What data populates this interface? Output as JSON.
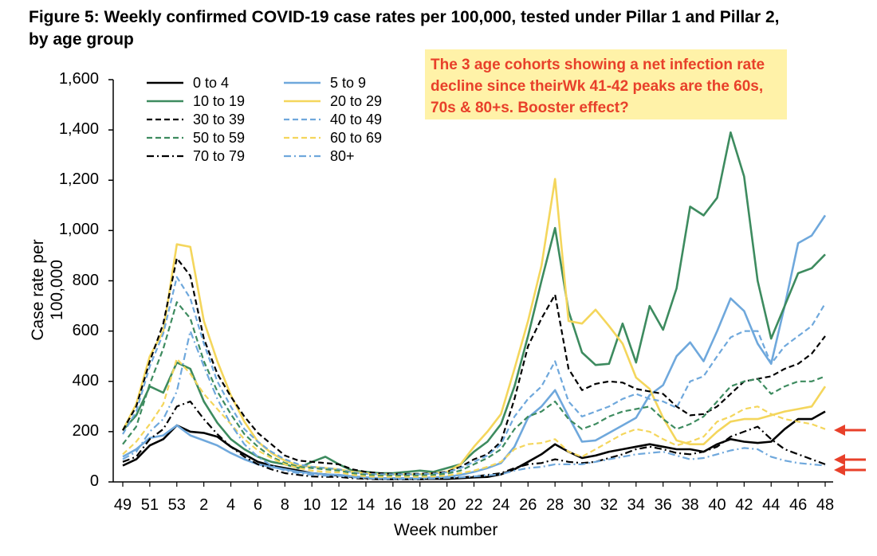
{
  "title": "Figure 5: Weekly confirmed COVID-19 case rates per 100,000, tested under Pillar 1 and Pillar 2, by age group",
  "callout": "The 3 age cohorts showing a net infection rate decline since theirWk 41-42 peaks are the 60s, 70s & 80+s. Booster effect?",
  "chart_data": {
    "type": "line",
    "title": "Figure 5: Weekly confirmed COVID-19 case rates per 100,000, tested under Pillar 1 and Pillar 2, by age group",
    "xlabel": "Week number",
    "ylabel": "Case rate per 100,000",
    "ylim": [
      0,
      1600
    ],
    "yticks": [
      "0",
      "200",
      "400",
      "600",
      "800",
      "1,000",
      "1,200",
      "1,400",
      "1,600"
    ],
    "xtick_labels": [
      "49",
      "51",
      "53",
      "2",
      "4",
      "6",
      "8",
      "10",
      "12",
      "14",
      "16",
      "18",
      "20",
      "22",
      "24",
      "26",
      "28",
      "30",
      "32",
      "34",
      "36",
      "38",
      "40",
      "42",
      "44",
      "46",
      "48"
    ],
    "x": [
      "49",
      "50",
      "51",
      "52",
      "53",
      "1",
      "2",
      "3",
      "4",
      "5",
      "6",
      "7",
      "8",
      "9",
      "10",
      "11",
      "12",
      "13",
      "14",
      "15",
      "16",
      "17",
      "18",
      "19",
      "20",
      "21",
      "22",
      "23",
      "24",
      "25",
      "26",
      "27",
      "28",
      "29",
      "30",
      "31",
      "32",
      "33",
      "34",
      "35",
      "36",
      "37",
      "38",
      "39",
      "40",
      "41",
      "42",
      "43",
      "44",
      "45",
      "46",
      "47",
      "48"
    ],
    "legend_position": "top-left",
    "grid": false,
    "series": [
      {
        "name": "0 to 4",
        "color": "#000000",
        "dash": "solid",
        "values": [
          65,
          90,
          145,
          170,
          225,
          200,
          195,
          180,
          140,
          110,
          80,
          65,
          55,
          45,
          35,
          30,
          25,
          20,
          15,
          12,
          12,
          12,
          12,
          12,
          12,
          15,
          18,
          20,
          30,
          50,
          80,
          110,
          150,
          120,
          95,
          105,
          120,
          130,
          140,
          150,
          140,
          130,
          130,
          120,
          150,
          170,
          160,
          155,
          160,
          210,
          250,
          250,
          280
        ]
      },
      {
        "name": "5 to 9",
        "color": "#6fa8dc",
        "dash": "solid",
        "values": [
          100,
          130,
          175,
          185,
          225,
          185,
          165,
          145,
          115,
          90,
          70,
          60,
          50,
          40,
          35,
          30,
          28,
          22,
          18,
          15,
          15,
          15,
          15,
          18,
          20,
          28,
          40,
          55,
          75,
          140,
          255,
          300,
          365,
          260,
          160,
          165,
          195,
          225,
          255,
          345,
          385,
          500,
          555,
          480,
          600,
          730,
          680,
          550,
          470,
          700,
          950,
          980,
          1060
        ]
      },
      {
        "name": "10 to 19",
        "color": "#3d8b5f",
        "dash": "solid",
        "values": [
          205,
          265,
          380,
          355,
          475,
          450,
          320,
          235,
          170,
          130,
          100,
          80,
          70,
          55,
          80,
          100,
          70,
          45,
          40,
          35,
          35,
          40,
          45,
          40,
          55,
          70,
          120,
          160,
          230,
          380,
          580,
          800,
          1010,
          680,
          515,
          465,
          470,
          630,
          475,
          700,
          605,
          770,
          1095,
          1060,
          1130,
          1390,
          1215,
          800,
          570,
          700,
          830,
          850,
          905
        ]
      },
      {
        "name": "20 to 29",
        "color": "#f4d65c",
        "dash": "solid",
        "values": [
          205,
          310,
          500,
          600,
          945,
          935,
          640,
          480,
          345,
          240,
          160,
          115,
          85,
          65,
          60,
          55,
          50,
          40,
          35,
          30,
          30,
          30,
          30,
          35,
          40,
          70,
          140,
          200,
          270,
          450,
          640,
          860,
          1205,
          640,
          630,
          685,
          620,
          550,
          415,
          370,
          255,
          165,
          150,
          150,
          200,
          240,
          250,
          250,
          265,
          280,
          290,
          300,
          380
        ]
      },
      {
        "name": "30 to 39",
        "color": "#000000",
        "dash": "dashed",
        "values": [
          205,
          300,
          480,
          630,
          890,
          820,
          570,
          430,
          340,
          260,
          195,
          150,
          105,
          85,
          80,
          75,
          70,
          50,
          40,
          35,
          32,
          32,
          32,
          35,
          40,
          60,
          90,
          110,
          160,
          330,
          540,
          650,
          745,
          450,
          365,
          390,
          400,
          395,
          370,
          360,
          350,
          300,
          265,
          270,
          300,
          350,
          400,
          410,
          420,
          450,
          470,
          510,
          580
        ]
      },
      {
        "name": "40 to 49",
        "color": "#6fa8dc",
        "dash": "dashed",
        "values": [
          190,
          280,
          460,
          590,
          815,
          730,
          550,
          400,
          300,
          210,
          160,
          120,
          90,
          70,
          60,
          55,
          50,
          38,
          32,
          30,
          30,
          30,
          30,
          33,
          38,
          55,
          80,
          105,
          150,
          260,
          330,
          380,
          480,
          320,
          260,
          280,
          300,
          330,
          350,
          330,
          320,
          295,
          400,
          420,
          500,
          575,
          600,
          600,
          470,
          540,
          580,
          620,
          710
        ]
      },
      {
        "name": "50 to 59",
        "color": "#3d8b5f",
        "dash": "dashed",
        "values": [
          150,
          220,
          390,
          530,
          715,
          650,
          480,
          360,
          270,
          190,
          140,
          100,
          75,
          60,
          55,
          50,
          45,
          35,
          28,
          25,
          25,
          25,
          25,
          28,
          33,
          45,
          70,
          95,
          130,
          210,
          260,
          280,
          320,
          250,
          210,
          230,
          260,
          280,
          290,
          300,
          250,
          210,
          230,
          260,
          320,
          380,
          400,
          410,
          350,
          380,
          400,
          400,
          420
        ]
      },
      {
        "name": "60 to 69",
        "color": "#f4d65c",
        "dash": "dashed",
        "values": [
          110,
          160,
          230,
          310,
          490,
          430,
          350,
          290,
          230,
          170,
          125,
          95,
          70,
          55,
          45,
          40,
          38,
          28,
          22,
          20,
          20,
          20,
          20,
          22,
          25,
          35,
          45,
          60,
          80,
          130,
          150,
          155,
          170,
          120,
          100,
          130,
          160,
          190,
          210,
          200,
          170,
          145,
          160,
          180,
          240,
          260,
          290,
          300,
          270,
          250,
          240,
          230,
          210
        ]
      },
      {
        "name": "70 to 79",
        "color": "#000000",
        "dash": "dashdot",
        "values": [
          80,
          100,
          170,
          210,
          300,
          320,
          250,
          190,
          140,
          100,
          70,
          50,
          35,
          28,
          22,
          20,
          20,
          15,
          12,
          10,
          10,
          10,
          10,
          12,
          14,
          18,
          22,
          28,
          35,
          55,
          70,
          75,
          90,
          80,
          75,
          80,
          95,
          110,
          130,
          140,
          130,
          115,
          110,
          120,
          140,
          180,
          200,
          220,
          170,
          130,
          110,
          90,
          70
        ]
      },
      {
        "name": "80+",
        "color": "#6fa8dc",
        "dash": "dashdot",
        "values": [
          90,
          120,
          200,
          250,
          360,
          600,
          460,
          330,
          230,
          150,
          100,
          65,
          45,
          35,
          28,
          25,
          25,
          18,
          15,
          12,
          12,
          12,
          12,
          14,
          16,
          18,
          22,
          26,
          30,
          45,
          55,
          60,
          70,
          70,
          70,
          80,
          90,
          100,
          110,
          115,
          120,
          105,
          90,
          95,
          110,
          125,
          135,
          130,
          100,
          85,
          75,
          70,
          65
        ]
      }
    ]
  }
}
